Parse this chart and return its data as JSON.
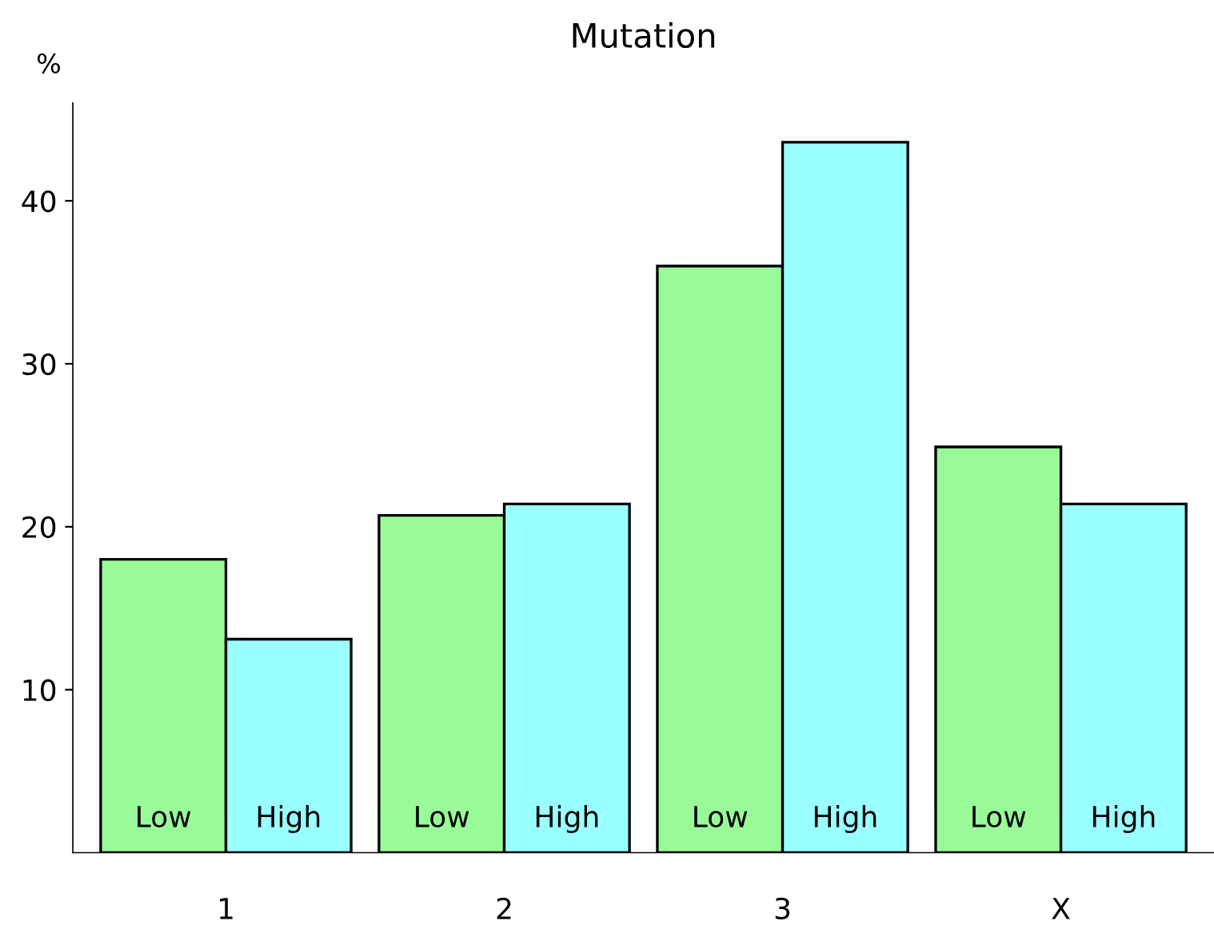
{
  "chart_data": {
    "type": "bar",
    "title": "Mutation",
    "ylabel": "%",
    "categories": [
      "1",
      "2",
      "3",
      "X"
    ],
    "series": [
      {
        "name": "Low",
        "color": "#98fb98",
        "values": [
          18.0,
          20.7,
          36.0,
          24.9
        ]
      },
      {
        "name": "High",
        "color": "#99ffff",
        "values": [
          13.1,
          21.4,
          43.6,
          21.4
        ]
      }
    ],
    "ylim": [
      0,
      46
    ],
    "yticks": [
      10,
      20,
      30,
      40
    ],
    "grid": false,
    "legend": false
  }
}
